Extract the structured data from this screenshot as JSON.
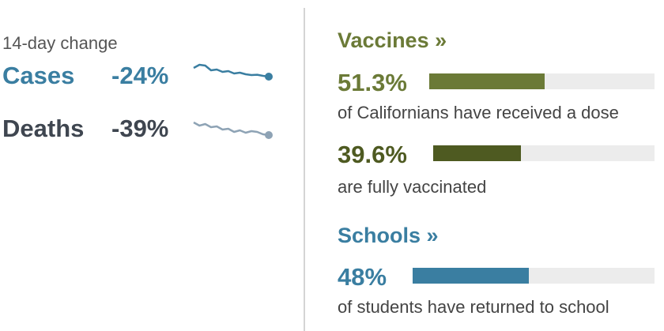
{
  "trend": {
    "heading": "14-day change",
    "rows": [
      {
        "label": "Cases",
        "change": "-24%",
        "color": "#3a7ea1",
        "sparkline": [
          0.35,
          0.15,
          0.2,
          0.5,
          0.45,
          0.6,
          0.55,
          0.7,
          0.65,
          0.75,
          0.8,
          0.78,
          0.85,
          0.9
        ]
      },
      {
        "label": "Deaths",
        "change": "-39%",
        "color": "#3f4650",
        "line_color": "#8ea3b5",
        "sparkline": [
          0.1,
          0.3,
          0.2,
          0.4,
          0.35,
          0.55,
          0.5,
          0.7,
          0.6,
          0.75,
          0.65,
          0.7,
          0.85,
          0.9
        ]
      }
    ]
  },
  "vaccines": {
    "title": "Vaccines »",
    "color": "#6b7a37",
    "first_dose": {
      "value": "51.3%",
      "fraction": 0.513,
      "caption": "of Californians have received a dose",
      "color": "#6b7a37"
    },
    "fully": {
      "value": "39.6%",
      "fraction": 0.396,
      "caption": "are fully vaccinated",
      "color": "#4e5a21"
    }
  },
  "schools": {
    "title": "Schools »",
    "color": "#3a7ea1",
    "returned": {
      "value": "48%",
      "fraction": 0.48,
      "caption": "of students have returned to school",
      "color": "#3a7ea1"
    }
  }
}
